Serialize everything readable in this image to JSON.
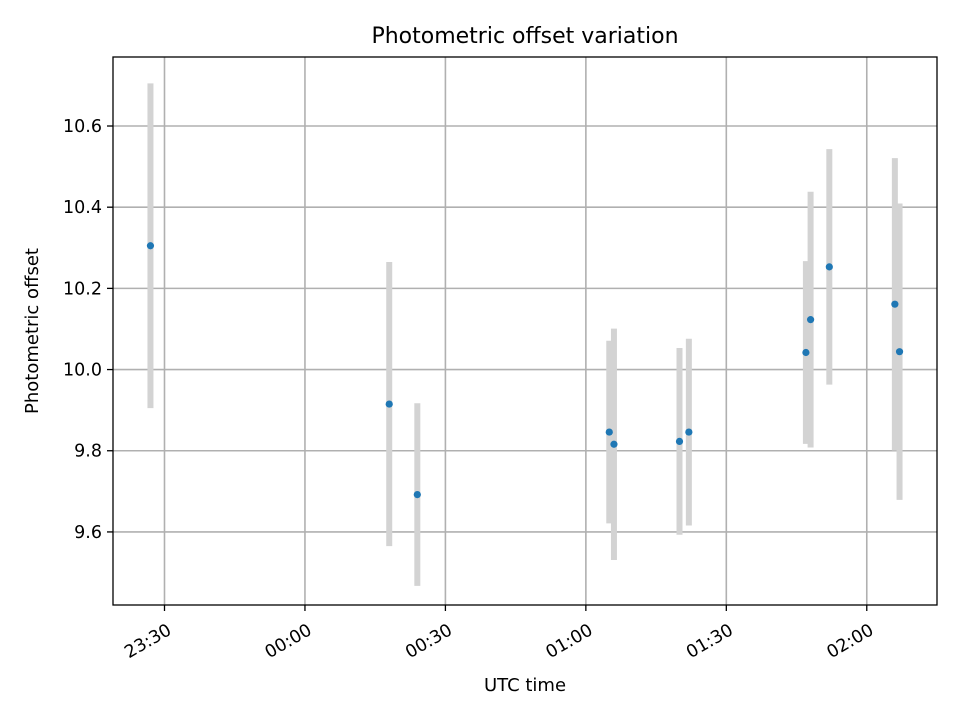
{
  "chart_data": {
    "type": "scatter",
    "title": "Photometric offset variation",
    "xlabel": "UTC time",
    "ylabel": "Photometric offset",
    "x_unit": "UTC time of night (23:xx, then 00:xx–02:xx of the following day)",
    "xlim": [
      "23:19",
      "02:15"
    ],
    "ylim": [
      9.42,
      10.77
    ],
    "x_ticks": [
      "23:30",
      "00:00",
      "00:30",
      "01:00",
      "01:30",
      "02:00"
    ],
    "y_ticks": [
      9.6,
      9.8,
      10.0,
      10.2,
      10.4,
      10.6
    ],
    "grid": true,
    "colors": {
      "point": "#1f77b4",
      "errorbar": "#d3d3d3"
    },
    "points": [
      {
        "x": "23:27",
        "y": 10.305,
        "ylow": 9.905,
        "yhigh": 10.705
      },
      {
        "x": "00:18",
        "y": 9.915,
        "ylow": 9.565,
        "yhigh": 10.265
      },
      {
        "x": "00:24",
        "y": 9.692,
        "ylow": 9.467,
        "yhigh": 9.917
      },
      {
        "x": "01:05",
        "y": 9.846,
        "ylow": 9.621,
        "yhigh": 10.071
      },
      {
        "x": "01:06",
        "y": 9.816,
        "ylow": 9.531,
        "yhigh": 10.101
      },
      {
        "x": "01:20",
        "y": 9.823,
        "ylow": 9.593,
        "yhigh": 10.053
      },
      {
        "x": "01:22",
        "y": 9.846,
        "ylow": 9.616,
        "yhigh": 10.076
      },
      {
        "x": "01:47",
        "y": 10.042,
        "ylow": 9.817,
        "yhigh": 10.267
      },
      {
        "x": "01:48",
        "y": 10.123,
        "ylow": 9.808,
        "yhigh": 10.438
      },
      {
        "x": "01:52",
        "y": 10.253,
        "ylow": 9.963,
        "yhigh": 10.543
      },
      {
        "x": "02:06",
        "y": 10.161,
        "ylow": 9.801,
        "yhigh": 10.521
      },
      {
        "x": "02:07",
        "y": 10.044,
        "ylow": 9.679,
        "yhigh": 10.409
      }
    ]
  }
}
